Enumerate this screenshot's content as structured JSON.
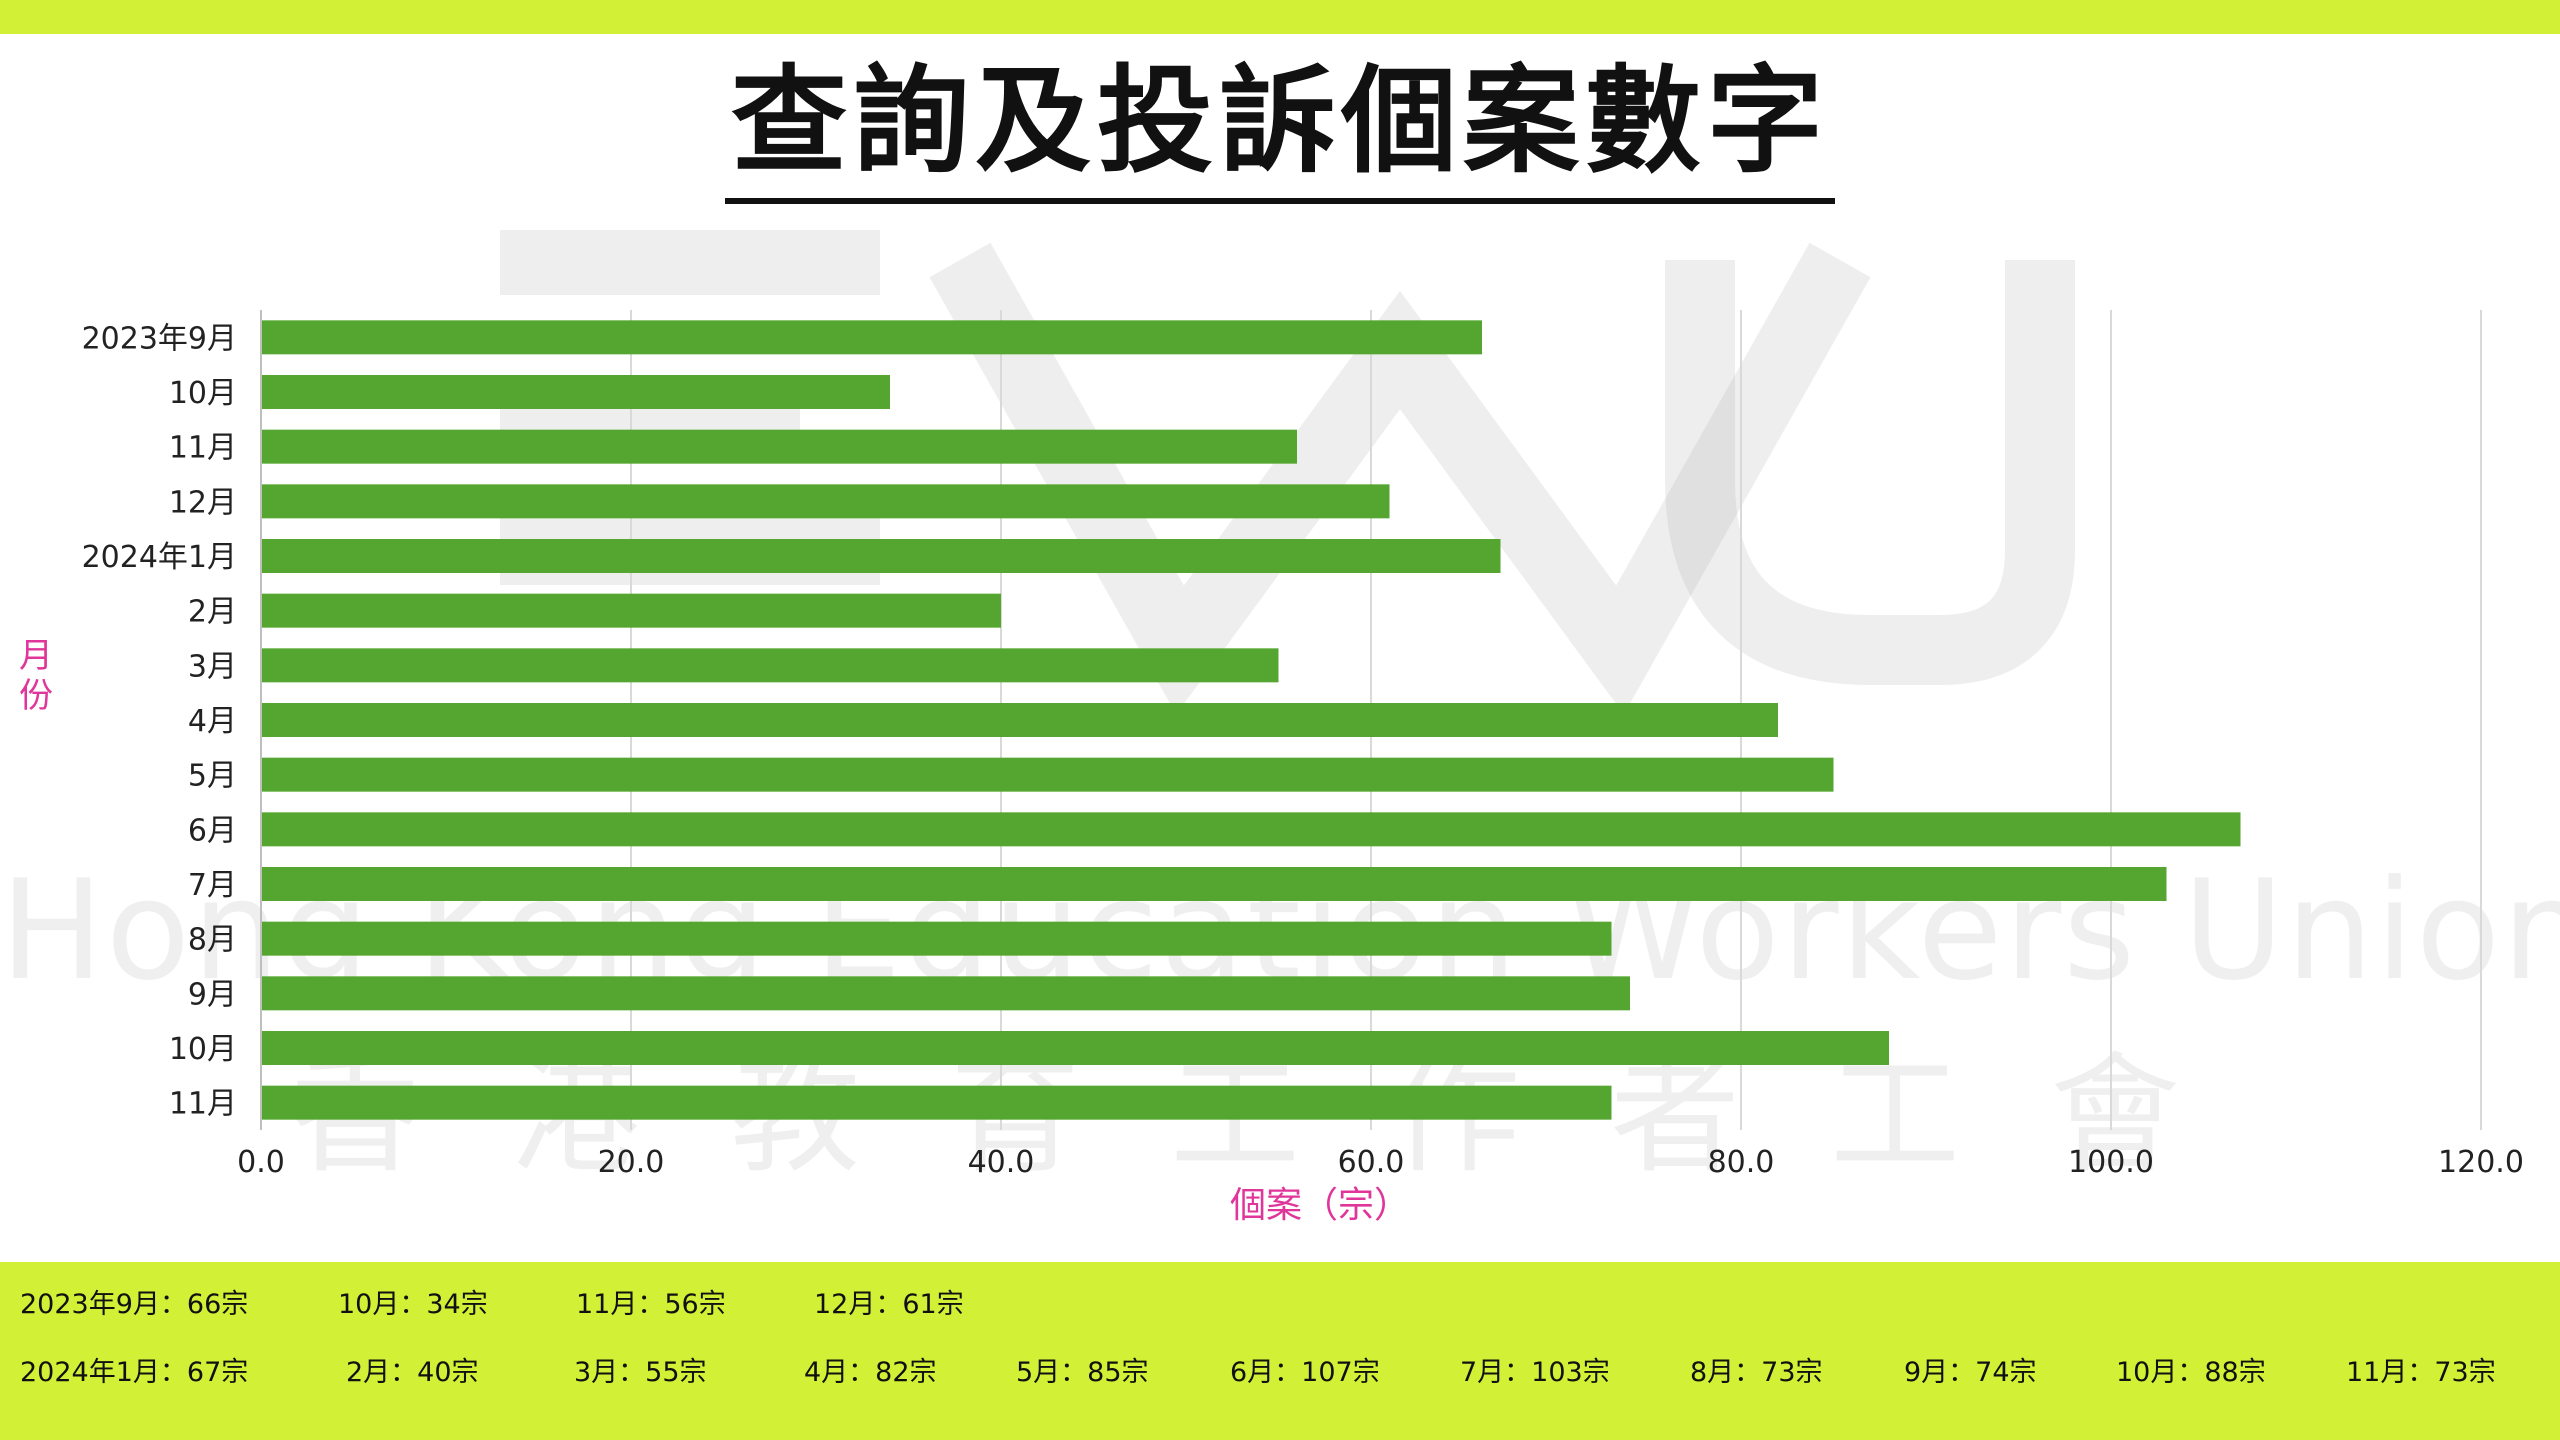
{
  "title": "查詢及投訴個案數字",
  "watermark": {
    "english": "Hong Kong Education Workers Union",
    "chinese": "香港教育工作者工會"
  },
  "colors": {
    "accent_bar": "#d2f036",
    "bar": "#55a630",
    "axis_title": "#e0359a"
  },
  "chart_data": {
    "type": "bar",
    "orientation": "horizontal",
    "categories": [
      "2023年9月",
      "10月",
      "11月",
      "12月",
      "2024年1月",
      "2月",
      "3月",
      "4月",
      "5月",
      "6月",
      "7月",
      "8月",
      "9月",
      "10月",
      "11月"
    ],
    "values": [
      66,
      34,
      56,
      61,
      67,
      40,
      55,
      82,
      85,
      107,
      103,
      73,
      74,
      88,
      73
    ],
    "xlabel": "個案（宗）",
    "ylabel": "月份",
    "xlim": [
      0,
      120
    ],
    "xticks": [
      "0.0",
      "20.0",
      "40.0",
      "60.0",
      "80.0",
      "100.0",
      "120.0"
    ],
    "grid": "vertical",
    "legend": "none"
  },
  "footer": {
    "row1": [
      "2023年9月：66宗",
      "10月：34宗",
      "11月：56宗",
      "12月：61宗"
    ],
    "row2": [
      "2024年1月：67宗",
      "2月：40宗",
      "3月：55宗",
      "4月：82宗",
      "5月：85宗",
      "6月：107宗",
      "7月：103宗",
      "8月：73宗",
      "9月：74宗",
      "10月：88宗",
      "11月：73宗"
    ]
  }
}
